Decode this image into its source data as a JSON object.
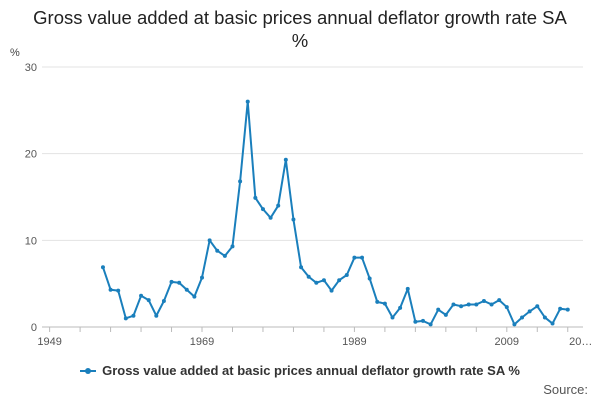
{
  "chart_data": {
    "type": "line",
    "title": "Gross value added at basic prices annual deflator growth rate SA %",
    "ylabel": "%",
    "xlabel": "",
    "xlim": [
      1948,
      2019
    ],
    "ylim": [
      0,
      30
    ],
    "y_ticks": [
      "0",
      "10",
      "20",
      "30"
    ],
    "y_tick_values": [
      0,
      10,
      20,
      30
    ],
    "x_ticks": [
      "1949",
      "1969",
      "1989",
      "2009",
      "20…"
    ],
    "x_tick_values": [
      1949,
      1969,
      1989,
      2009,
      2018.7
    ],
    "grid": true,
    "legend_position": "bottom",
    "series": [
      {
        "name": "Gross value added at basic prices annual deflator growth rate SA %",
        "color": "#1a7fbc",
        "x": [
          1956,
          1957,
          1958,
          1959,
          1960,
          1961,
          1962,
          1963,
          1964,
          1965,
          1966,
          1967,
          1968,
          1969,
          1970,
          1971,
          1972,
          1973,
          1974,
          1975,
          1976,
          1977,
          1978,
          1979,
          1980,
          1981,
          1982,
          1983,
          1984,
          1985,
          1986,
          1987,
          1988,
          1989,
          1990,
          1991,
          1992,
          1993,
          1994,
          1995,
          1996,
          1997,
          1998,
          1999,
          2000,
          2001,
          2002,
          2003,
          2004,
          2005,
          2006,
          2007,
          2008,
          2009,
          2010,
          2011,
          2012,
          2013,
          2014,
          2015,
          2016,
          2017,
          2018
        ],
        "values": [
          6.9,
          4.3,
          4.2,
          1.0,
          1.3,
          3.6,
          3.1,
          1.3,
          3.0,
          5.2,
          5.1,
          4.3,
          3.5,
          5.7,
          10.0,
          8.8,
          8.2,
          9.3,
          16.8,
          26.0,
          14.9,
          13.6,
          12.6,
          14.0,
          19.3,
          12.4,
          6.9,
          5.8,
          5.1,
          5.4,
          4.2,
          5.4,
          6.0,
          8.0,
          8.0,
          5.6,
          2.9,
          2.7,
          1.1,
          2.2,
          4.4,
          0.6,
          0.7,
          0.3,
          2.0,
          1.4,
          2.6,
          2.4,
          2.6,
          2.6,
          3.0,
          2.6,
          3.1,
          2.3,
          0.3,
          1.1,
          1.8,
          2.4,
          1.1,
          0.4,
          2.1,
          2.0,
          null
        ]
      }
    ]
  },
  "source_label": "Source:"
}
